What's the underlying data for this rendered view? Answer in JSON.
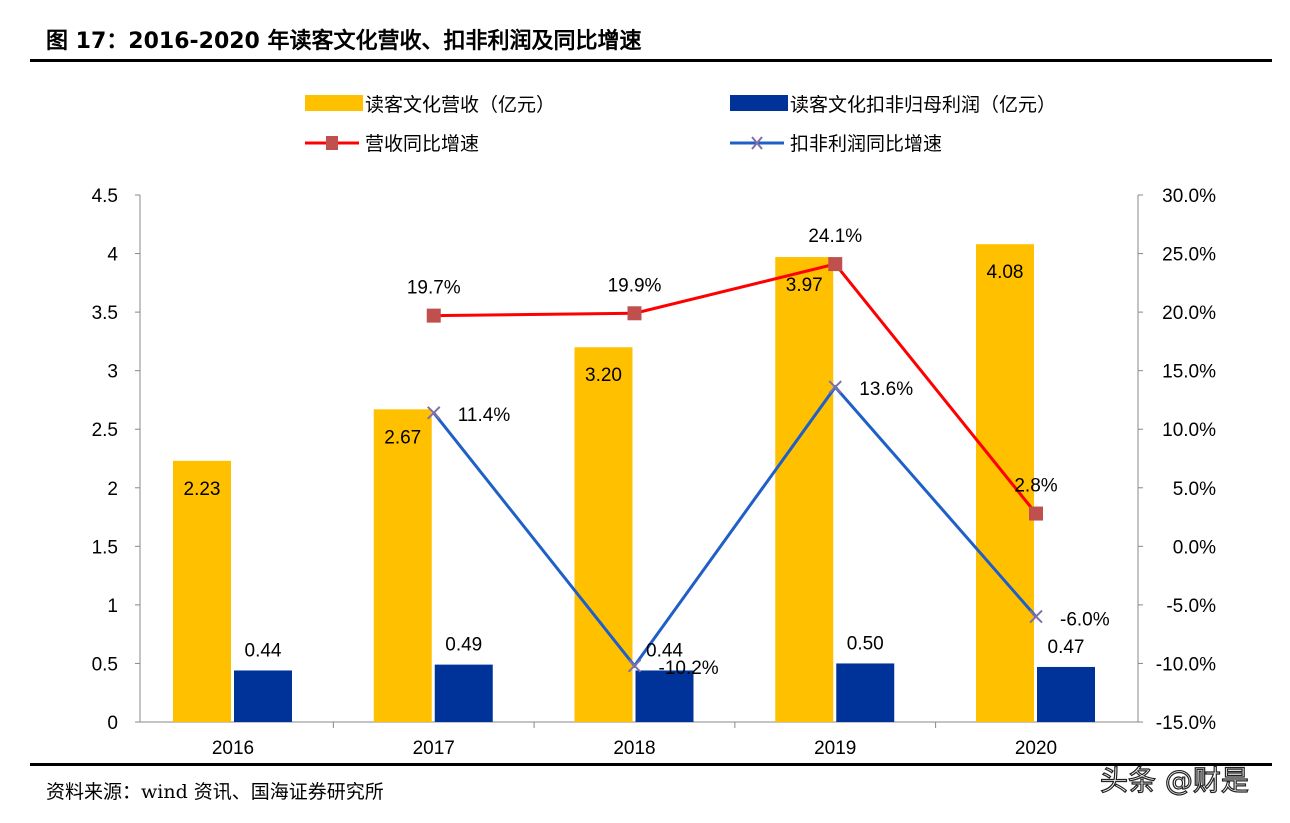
{
  "title": "图 17：2016-2020 年读客文化营收、扣非利润及同比增速",
  "source": "资料来源：wind 资讯、国海证券研究所",
  "watermark": "头条 @财是",
  "chart_data": {
    "type": "bar+line",
    "categories": [
      "2016",
      "2017",
      "2018",
      "2019",
      "2020"
    ],
    "left_axis": {
      "ylim": [
        0,
        4.5
      ],
      "ticks": [
        "0",
        "0.5",
        "1",
        "1.5",
        "2",
        "2.5",
        "3",
        "3.5",
        "4",
        "4.5"
      ]
    },
    "right_axis": {
      "ylim": [
        -15,
        30
      ],
      "ticks": [
        "-15.0%",
        "-10.0%",
        "-5.0%",
        "0.0%",
        "5.0%",
        "10.0%",
        "15.0%",
        "20.0%",
        "25.0%",
        "30.0%"
      ]
    },
    "grid": false,
    "legend_placement": "top",
    "series": [
      {
        "name": "读客文化营收（亿元）",
        "type": "bar",
        "axis": "left",
        "color": "#FFC000",
        "values": [
          2.23,
          2.67,
          3.2,
          3.97,
          4.08
        ],
        "labels": [
          "2.23",
          "2.67",
          "3.20",
          "3.97",
          "4.08"
        ]
      },
      {
        "name": "读客文化扣非归母利润（亿元）",
        "type": "bar",
        "axis": "left",
        "color": "#003399",
        "values": [
          0.44,
          0.49,
          0.44,
          0.5,
          0.47
        ],
        "labels": [
          "0.44",
          "0.49",
          "0.44",
          "0.50",
          "0.47"
        ]
      },
      {
        "name": "营收同比增速",
        "type": "line",
        "axis": "right",
        "color": "#FF0000",
        "marker": "square",
        "marker_color": "#C0504D",
        "values": [
          null,
          19.7,
          19.9,
          24.1,
          2.8
        ],
        "labels": [
          "",
          "19.7%",
          "19.9%",
          "24.1%",
          "2.8%"
        ]
      },
      {
        "name": "扣非利润同比增速",
        "type": "line",
        "axis": "right",
        "color": "#1F5FC8",
        "marker": "x",
        "marker_color": "#7F6FA8",
        "values": [
          null,
          11.4,
          -10.2,
          13.6,
          -6.0
        ],
        "labels": [
          "",
          "11.4%",
          "-10.2%",
          "13.6%",
          "-6.0%"
        ]
      }
    ]
  }
}
